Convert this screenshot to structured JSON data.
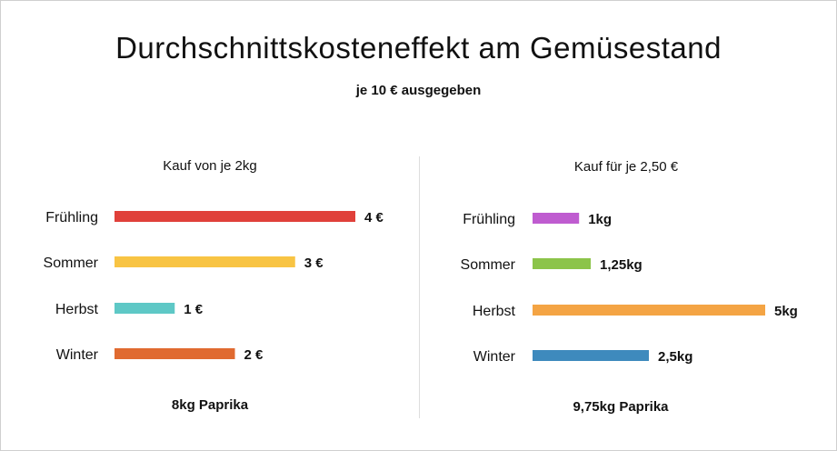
{
  "chart_data": {
    "type": "bar",
    "orientation": "horizontal",
    "title": "Durchschnittskosteneffekt am Gemüsestand",
    "subtitle": "je 10 € ausgegeben",
    "panels": [
      {
        "id": "left",
        "title": "Kauf von je 2kg",
        "footer": "8kg Paprika",
        "categories": [
          "Frühling",
          "Sommer",
          "Herbst",
          "Winter"
        ],
        "values": [
          4,
          3,
          1,
          2
        ],
        "value_labels": [
          "4 €",
          "3 €",
          "1 €",
          "2 €"
        ],
        "colors": [
          "#e0403a",
          "#f8c444",
          "#5ec8c6",
          "#e06a30"
        ],
        "xlim": [
          0,
          4
        ]
      },
      {
        "id": "right",
        "title": "Kauf für je 2,50 €",
        "footer": "9,75kg Paprika",
        "categories": [
          "Frühling",
          "Sommer",
          "Herbst",
          "Winter"
        ],
        "values": [
          1,
          1.25,
          5,
          2.5
        ],
        "value_labels": [
          "1kg",
          "1,25kg",
          "5kg",
          "2,5kg"
        ],
        "colors": [
          "#bf5cd0",
          "#8cc44a",
          "#f4a444",
          "#3e8abd"
        ],
        "xlim": [
          0,
          5
        ]
      }
    ]
  }
}
